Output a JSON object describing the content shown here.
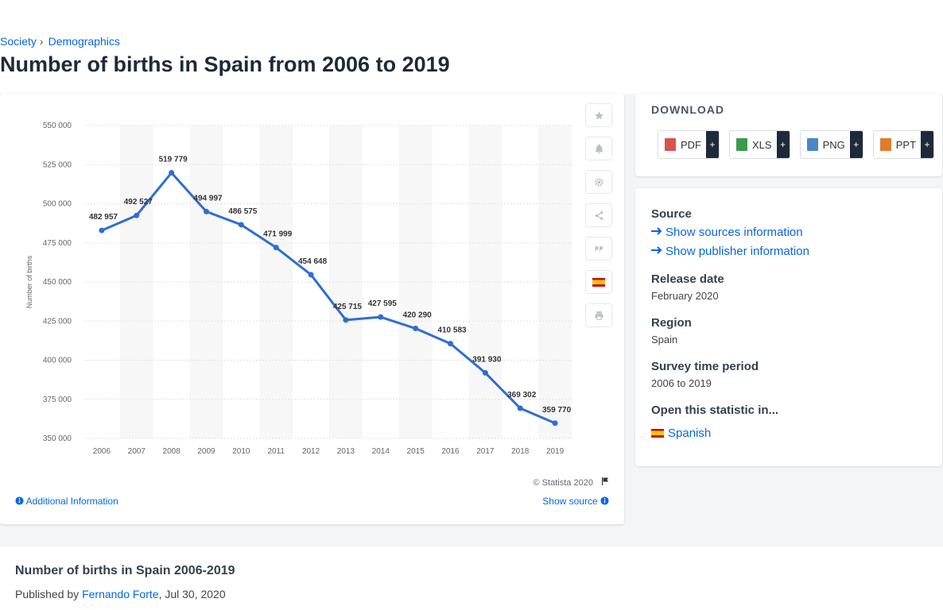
{
  "breadcrumb": {
    "items": [
      "Society",
      "Demographics"
    ],
    "separator": "›"
  },
  "page_title": "Number of births in Spain from 2006 to 2019",
  "chart_data": {
    "type": "line",
    "x": [
      "2006",
      "2007",
      "2008",
      "2009",
      "2010",
      "2011",
      "2012",
      "2013",
      "2014",
      "2015",
      "2016",
      "2017",
      "2018",
      "2019"
    ],
    "values": [
      482957,
      492527,
      519779,
      494997,
      486575,
      471999,
      454648,
      425715,
      427595,
      420290,
      410583,
      391930,
      369302,
      359770
    ],
    "data_labels": [
      "482 957",
      "492 527",
      "519 779",
      "494 997",
      "486 575",
      "471 999",
      "454 648",
      "425 715",
      "427 595",
      "420 290",
      "410 583",
      "391 930",
      "369 302",
      "359 770"
    ],
    "ylabel": "Number of births",
    "ylim": [
      350000,
      550000
    ],
    "yticks": [
      "350 000",
      "375 000",
      "400 000",
      "425 000",
      "450 000",
      "475 000",
      "500 000",
      "525 000",
      "550 000"
    ],
    "line_color": "#2e6ed0",
    "grid": true
  },
  "credit": "© Statista 2020",
  "additional_info": "Additional Information",
  "show_source": "Show source",
  "download": {
    "title": "DOWNLOAD",
    "buttons": [
      {
        "label": "PDF",
        "color": "#d9534f"
      },
      {
        "label": "XLS",
        "color": "#3c9a4c"
      },
      {
        "label": "PNG",
        "color": "#4a86c8"
      },
      {
        "label": "PPT",
        "color": "#e07b2a"
      }
    ],
    "plus": "+"
  },
  "meta": {
    "source_h": "Source",
    "sources_link": "Show sources information",
    "publisher_link": "Show publisher information",
    "release_h": "Release date",
    "release_v": "February 2020",
    "region_h": "Region",
    "region_v": "Spain",
    "survey_h": "Survey time period",
    "survey_v": "2006 to 2019",
    "open_h": "Open this statistic in...",
    "open_lang": "Spanish"
  },
  "bottom": {
    "title": "Number of births in Spain 2006-2019",
    "published_by": "Published by",
    "author": "Fernando Forte",
    "date": ", Jul 30, 2020"
  },
  "icons": [
    "star-icon",
    "bell-icon",
    "gear-icon",
    "share-icon",
    "quote-icon",
    "spain-flag-icon",
    "print-icon",
    "flag-icon",
    "info-icon",
    "arrow-right-icon"
  ]
}
